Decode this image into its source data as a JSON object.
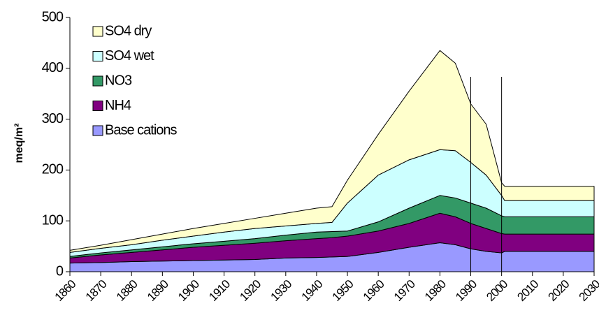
{
  "chart_data": {
    "type": "stacked_area",
    "y_label": "meq/m²",
    "x": [
      1860,
      1870,
      1880,
      1890,
      1900,
      1910,
      1920,
      1930,
      1940,
      1945,
      1950,
      1960,
      1970,
      1980,
      1985,
      1990,
      1995,
      2000,
      2001,
      2030
    ],
    "series": [
      {
        "name": "Base cations",
        "color": "#9999ff",
        "values": [
          17,
          18,
          20,
          21,
          22,
          23,
          24,
          27,
          28,
          29,
          30,
          38,
          48,
          57,
          53,
          45,
          40,
          37,
          40,
          40
        ]
      },
      {
        "name": "NH4",
        "color": "#800080",
        "values": [
          10,
          15,
          18,
          22,
          26,
          29,
          32,
          34,
          37,
          38,
          40,
          42,
          47,
          58,
          55,
          50,
          45,
          38,
          34,
          34
        ]
      },
      {
        "name": "NO3",
        "color": "#339966",
        "values": [
          3,
          4,
          5,
          6,
          7,
          8,
          9,
          11,
          13,
          12,
          10,
          18,
          30,
          35,
          37,
          40,
          40,
          35,
          34,
          34
        ]
      },
      {
        "name": "SO4 wet",
        "color": "#ccffff",
        "values": [
          8,
          9,
          10,
          13,
          15,
          18,
          20,
          18,
          17,
          18,
          55,
          92,
          95,
          90,
          93,
          80,
          65,
          40,
          32,
          32
        ]
      },
      {
        "name": "SO4 dry",
        "color": "#ffffcc",
        "values": [
          4,
          6,
          10,
          12,
          15,
          17,
          20,
          25,
          30,
          31,
          45,
          80,
          135,
          195,
          172,
          115,
          100,
          25,
          28,
          28
        ]
      }
    ],
    "vlines": [
      1990,
      2000
    ],
    "xlim": [
      1860,
      2030
    ],
    "xticks": [
      1860,
      1870,
      1880,
      1890,
      1900,
      1910,
      1920,
      1930,
      1940,
      1950,
      1960,
      1970,
      1980,
      1990,
      2000,
      2010,
      2020,
      2030
    ],
    "ylim": [
      0,
      500
    ],
    "yticks": [
      0,
      100,
      200,
      300,
      400,
      500
    ],
    "legend": "top-left"
  }
}
